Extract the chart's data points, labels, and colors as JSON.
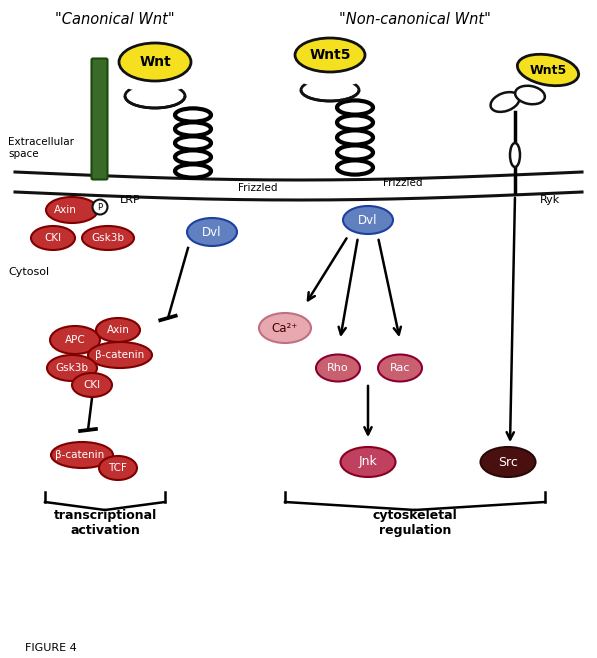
{
  "title_canonical": "\"Canonical Wnt\"",
  "title_noncanonical": "\"Non-canonical Wnt\"",
  "label_extracellular": "Extracellular\nspace",
  "label_cytosol": "Cytosol",
  "label_transcriptional": "transcriptional\nactivation",
  "label_cytoskeletal": "cytoskeletal\nregulation",
  "bg_color": "#ffffff",
  "membrane_color": "#111111",
  "wnt_fill": "#f5e020",
  "wnt_edge": "#111111",
  "receptor_fill": "#ffffff",
  "receptor_edge": "#111111",
  "dvl_fill": "#6080c0",
  "dvl_edge": "#2040a0",
  "dvl_text": "#ffffff",
  "red_fill": "#c03030",
  "red_edge": "#800000",
  "red_text": "#ffffff",
  "pink_fill": "#e8a8b0",
  "pink_edge": "#c07080",
  "pink_text": "#440000",
  "rho_fill": "#c86070",
  "rho_edge": "#8b0030",
  "dark_red_fill": "#4a1010",
  "dark_red_edge": "#2a0808",
  "dark_red_text": "#ffffff",
  "arrow_color": "#111111",
  "green_fill": "#3a6a2a",
  "green_edge": "#1a4a0a",
  "p_fill": "#ffffff",
  "p_edge": "#111111",
  "jnk_fill": "#c04060",
  "jnk_edge": "#8b0020",
  "figure_label": "FIGURE 4"
}
